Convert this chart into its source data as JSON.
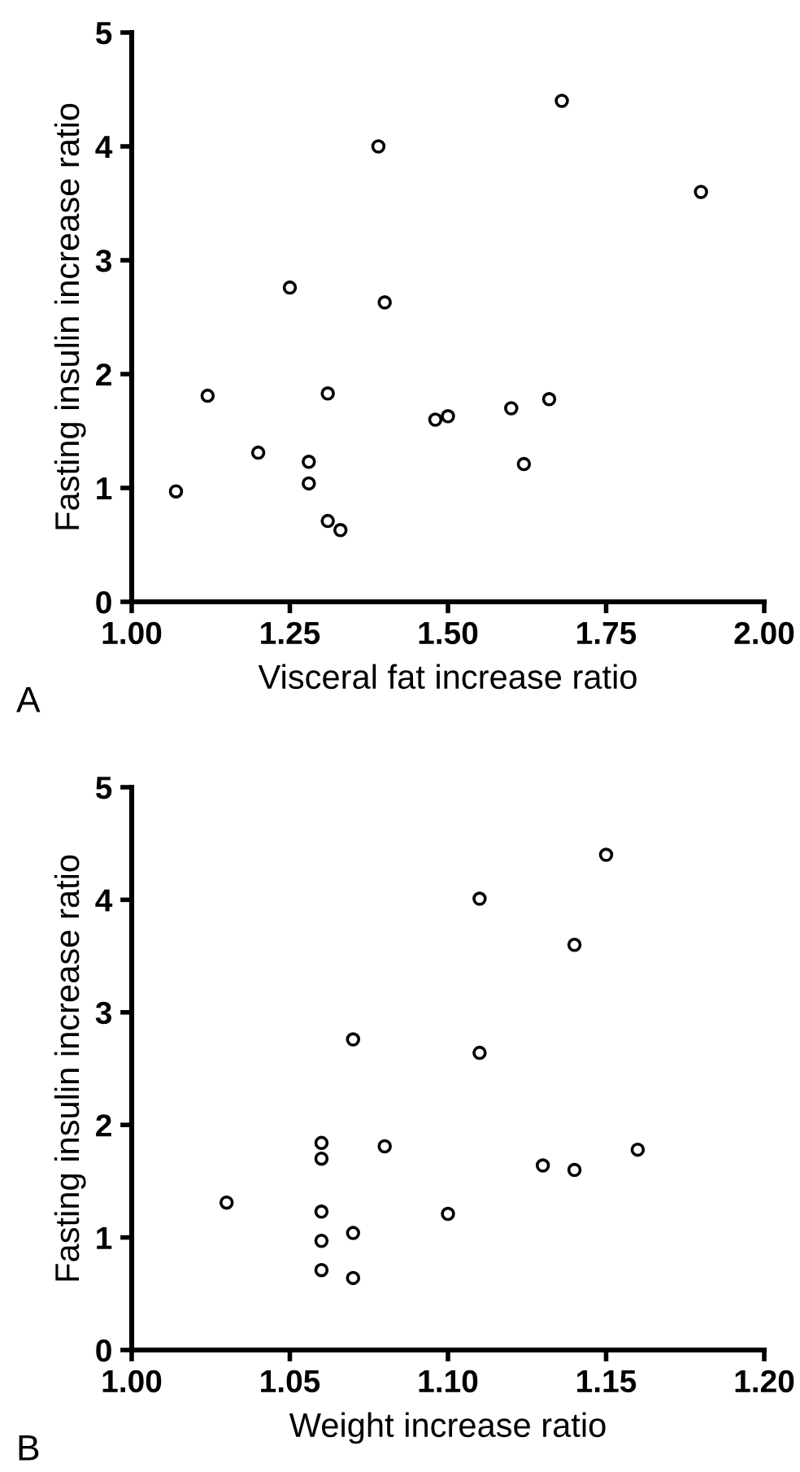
{
  "chart_data": [
    {
      "type": "scatter",
      "xlabel": "Visceral fat increase ratio",
      "ylabel": "Fasting insulin increase ratio",
      "annotations": [
        "A"
      ],
      "marker": "circle",
      "grid": false,
      "xlim": [
        1.0,
        2.0
      ],
      "xticks": [
        {
          "value": 1.0,
          "label": "1.00"
        },
        {
          "value": 1.25,
          "label": "1.25"
        },
        {
          "value": 1.5,
          "label": "1.50"
        },
        {
          "value": 1.75,
          "label": "1.75"
        },
        {
          "value": 2.0,
          "label": "2.00"
        }
      ],
      "ylim": [
        0,
        5
      ],
      "yticks": [
        0,
        1,
        2,
        3,
        4,
        5
      ],
      "series": [
        {
          "color": "#000000",
          "x": [
            1.07,
            1.12,
            1.2,
            1.25,
            1.28,
            1.28,
            1.31,
            1.31,
            1.33,
            1.39,
            1.4,
            1.48,
            1.5,
            1.6,
            1.62,
            1.66,
            1.68,
            1.9
          ],
          "values": [
            0.97,
            1.81,
            1.31,
            2.76,
            1.23,
            1.04,
            1.83,
            0.71,
            0.63,
            4.0,
            2.63,
            1.6,
            1.63,
            1.7,
            1.21,
            1.78,
            4.4,
            3.6
          ]
        }
      ]
    },
    {
      "type": "scatter",
      "xlabel": "Weight increase ratio",
      "ylabel": "Fasting insulin increase ratio",
      "annotations": [
        "B"
      ],
      "marker": "circle",
      "grid": false,
      "xlim": [
        1.0,
        1.2
      ],
      "xticks": [
        {
          "value": 1.0,
          "label": "1.00"
        },
        {
          "value": 1.05,
          "label": "1.05"
        },
        {
          "value": 1.1,
          "label": "1.10"
        },
        {
          "value": 1.15,
          "label": "1.15"
        },
        {
          "value": 1.2,
          "label": "1.20"
        }
      ],
      "ylim": [
        0,
        5
      ],
      "yticks": [
        0,
        1,
        2,
        3,
        4,
        5
      ],
      "series": [
        {
          "color": "#000000",
          "x": [
            1.03,
            1.06,
            1.06,
            1.06,
            1.06,
            1.06,
            1.07,
            1.07,
            1.07,
            1.08,
            1.1,
            1.11,
            1.11,
            1.13,
            1.14,
            1.14,
            1.15,
            1.16
          ],
          "values": [
            1.31,
            1.84,
            1.7,
            1.23,
            0.97,
            0.71,
            2.76,
            1.04,
            0.64,
            1.81,
            1.21,
            4.01,
            2.64,
            1.64,
            3.6,
            1.6,
            4.4,
            1.78
          ]
        }
      ]
    }
  ]
}
